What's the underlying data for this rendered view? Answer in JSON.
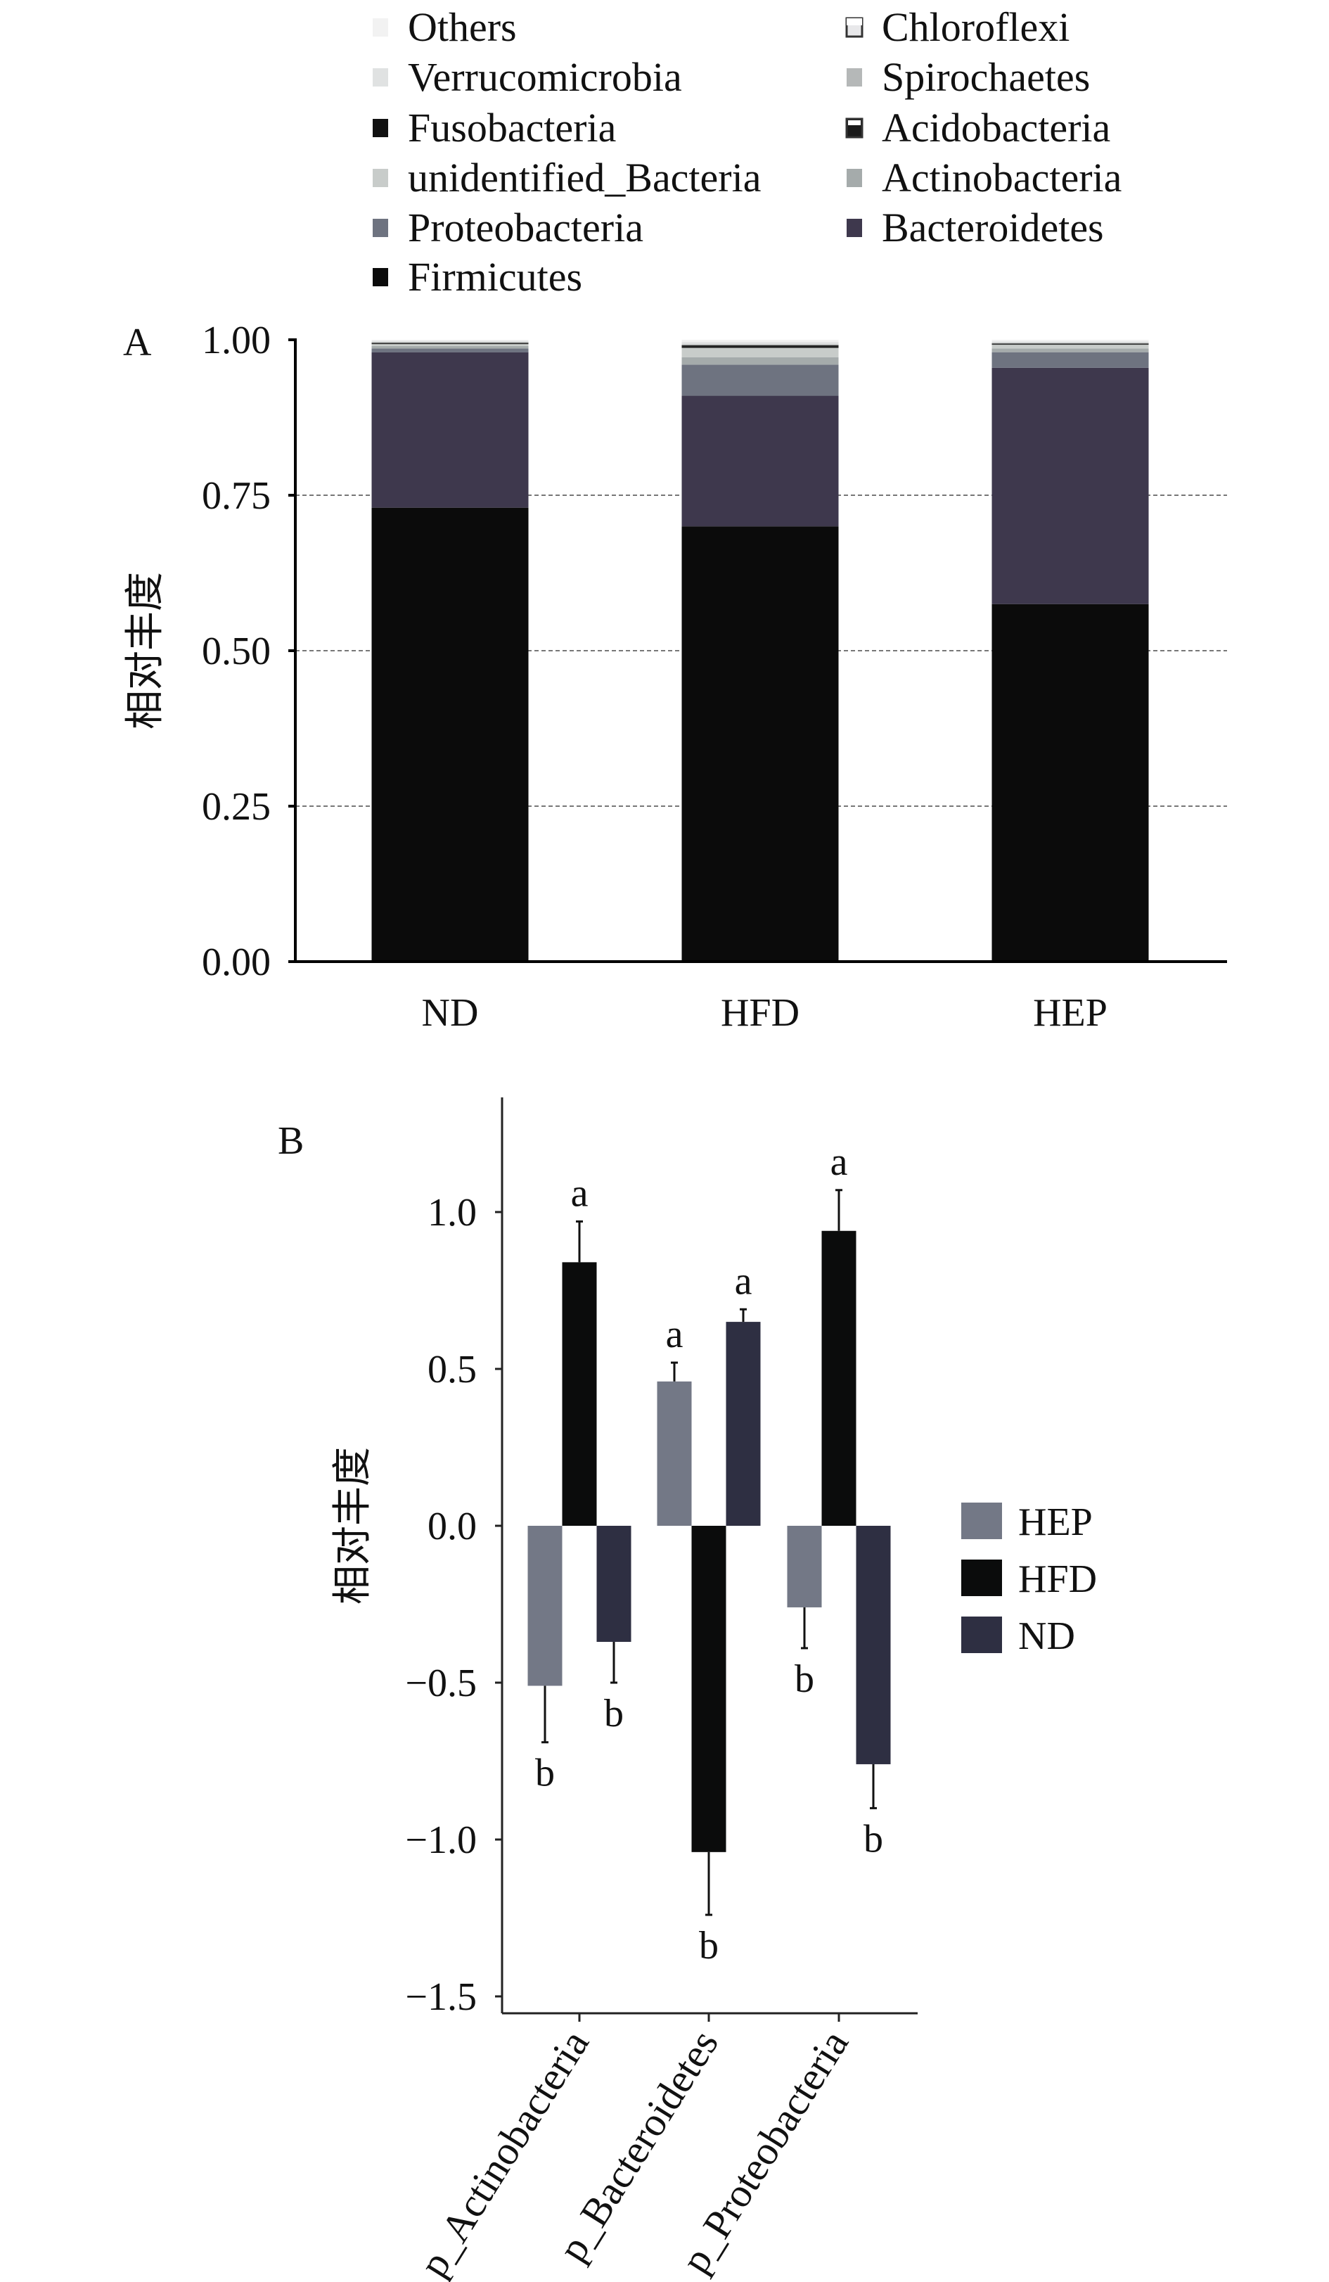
{
  "chart_data": [
    {
      "type": "bar",
      "stacked": true,
      "panel_label": "A",
      "title": "",
      "xlabel": "",
      "ylabel": "相对丰度",
      "ylim": [
        0,
        1
      ],
      "yticks": [
        "0.00",
        "0.25",
        "0.50",
        "0.75",
        "1.00"
      ],
      "grid": "dashed horizontal",
      "legend_placement": "top",
      "categories": [
        "ND",
        "HFD",
        "HEP"
      ],
      "series": [
        {
          "name": "Firmicutes",
          "color": "#0b0b0b",
          "values": [
            0.73,
            0.7,
            0.575
          ]
        },
        {
          "name": "Bacteroidetes",
          "color": "#3e384d",
          "values": [
            0.25,
            0.21,
            0.38
          ]
        },
        {
          "name": "Proteobacteria",
          "color": "#6e7380",
          "values": [
            0.006,
            0.05,
            0.025
          ]
        },
        {
          "name": "Actinobacteria",
          "color": "#a5abab",
          "values": [
            0.004,
            0.012,
            0.006
          ]
        },
        {
          "name": "unidentified_Bacteria",
          "color": "#c8ccca",
          "values": [
            0.003,
            0.015,
            0.006
          ]
        },
        {
          "name": "Acidobacteria",
          "color": "#1a1a1a",
          "values": [
            0.001,
            0.002,
            0.001
          ]
        },
        {
          "name": "Fusobacteria",
          "color": "#111111",
          "values": [
            0.001,
            0.002,
            0.001
          ]
        },
        {
          "name": "Spirochaetes",
          "color": "#b5b8b8",
          "values": [
            0.001,
            0.002,
            0.001
          ]
        },
        {
          "name": "Verrucomicrobia",
          "color": "#e0e2e2",
          "values": [
            0.002,
            0.003,
            0.002
          ]
        },
        {
          "name": "Chloroflexi",
          "color": "#e8e8ea",
          "values": [
            0.001,
            0.001,
            0.001
          ]
        },
        {
          "name": "Others",
          "color": "#f2f2f2",
          "values": [
            0.001,
            0.003,
            0.002
          ]
        }
      ],
      "legend_order": [
        [
          "Others",
          "Chloroflexi"
        ],
        [
          "Verrucomicrobia",
          "Spirochaetes"
        ],
        [
          "Fusobacteria",
          "Acidobacteria"
        ],
        [
          "unidentified_Bacteria",
          "Actinobacteria"
        ],
        [
          "Proteobacteria",
          "Bacteroidetes"
        ],
        [
          "Firmicutes",
          null
        ]
      ]
    },
    {
      "type": "bar",
      "panel_label": "B",
      "title": "",
      "xlabel": "",
      "ylabel": "相对丰度",
      "ylim": [
        -1.5,
        1.35
      ],
      "yticks": [
        "−1.5",
        "−1.0",
        "−0.5",
        "0.0",
        "0.5",
        "1.0"
      ],
      "ytick_values": [
        -1.5,
        -1.0,
        -0.5,
        0.0,
        0.5,
        1.0
      ],
      "grid": "off",
      "legend_placement": "right",
      "categories": [
        "p_Actinobacteria",
        "p_Bacteroidetes",
        "p_Proteobacteria"
      ],
      "series": [
        {
          "name": "HEP",
          "color": "#737886",
          "values": [
            -0.51,
            0.46,
            -0.26
          ],
          "errors": [
            0.18,
            0.06,
            0.13
          ],
          "letters": [
            "b",
            "a",
            "b"
          ]
        },
        {
          "name": "HFD",
          "color": "#0b0c0c",
          "values": [
            0.84,
            -1.04,
            0.94
          ],
          "errors": [
            0.13,
            0.2,
            0.13
          ],
          "letters": [
            "a",
            "b",
            "a"
          ]
        },
        {
          "name": "ND",
          "color": "#2e2f42",
          "values": [
            -0.37,
            0.65,
            -0.76
          ],
          "errors": [
            0.13,
            0.04,
            0.14
          ],
          "letters": [
            "b",
            "a",
            "b"
          ]
        }
      ]
    }
  ]
}
